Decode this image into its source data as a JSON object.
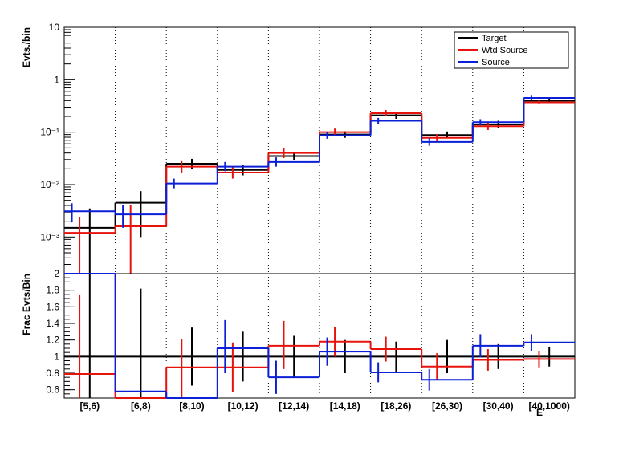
{
  "chart_data": [
    {
      "type": "step",
      "panel": "top",
      "ylabel": "Evts./bin",
      "yscale": "log",
      "ylim": [
        0.0002,
        10
      ],
      "categories": [
        "[5,6)",
        "[6,8)",
        "[8,10)",
        "[10,12)",
        "[12,14)",
        "[14,18)",
        "[18,26)",
        "[26,30)",
        "[30,40)",
        "[40,1000)"
      ],
      "y_tick_labels": [
        "10",
        "1",
        "10⁻¹",
        "10⁻²",
        "10⁻³"
      ],
      "legend": {
        "position": "top-right",
        "entries": [
          "Target",
          "Wtd Source",
          "Source"
        ]
      },
      "series": [
        {
          "name": "Target",
          "color": "#000000",
          "values": [
            0.0015,
            0.0045,
            0.025,
            0.019,
            0.035,
            0.09,
            0.21,
            0.088,
            0.14,
            0.4
          ],
          "err_lo": [
            0.0015,
            0.0035,
            0.005,
            0.004,
            0.006,
            0.012,
            0.03,
            0.012,
            0.02,
            0.03
          ],
          "err_hi": [
            0.002,
            0.003,
            0.006,
            0.005,
            0.007,
            0.014,
            0.035,
            0.015,
            0.025,
            0.035
          ],
          "err_x_frac": 0.5
        },
        {
          "name": "Wtd Source",
          "color": "#e8120c",
          "values": [
            0.0012,
            0.0016,
            0.022,
            0.017,
            0.04,
            0.1,
            0.23,
            0.078,
            0.13,
            0.37
          ],
          "err_lo": [
            0.0012,
            0.0016,
            0.005,
            0.004,
            0.008,
            0.015,
            0.03,
            0.012,
            0.02,
            0.03
          ],
          "err_hi": [
            0.0012,
            0.0025,
            0.006,
            0.005,
            0.009,
            0.017,
            0.035,
            0.014,
            0.022,
            0.035
          ],
          "err_x_frac": 0.3
        },
        {
          "name": "Source",
          "color": "#0a1fd6",
          "values": [
            0.0031,
            0.0027,
            0.0105,
            0.022,
            0.027,
            0.087,
            0.165,
            0.065,
            0.155,
            0.45
          ],
          "err_lo": [
            0.0012,
            0.0012,
            0.002,
            0.004,
            0.005,
            0.012,
            0.02,
            0.01,
            0.02,
            0.04
          ],
          "err_hi": [
            0.0013,
            0.0013,
            0.0025,
            0.005,
            0.006,
            0.014,
            0.022,
            0.012,
            0.022,
            0.045
          ],
          "err_x_frac": 0.15
        }
      ]
    },
    {
      "type": "step",
      "panel": "bottom",
      "ylabel": "Frac Evts/Bin",
      "xlabel": "E",
      "ylim": [
        0.5,
        2.0
      ],
      "y_ticks": [
        0.6,
        0.8,
        1.0,
        1.2,
        1.4,
        1.6,
        1.8,
        2.0
      ],
      "y_tick_labels": [
        "0.6",
        "0.8",
        "1",
        "1.2",
        "1.4",
        "1.6",
        "1.8",
        "2"
      ],
      "categories": [
        "[5,6)",
        "[6,8)",
        "[8,10)",
        "[10,12)",
        "[12,14)",
        "[14,18)",
        "[18,26)",
        "[26,30)",
        "[30,40)",
        "[40,1000)"
      ],
      "series": [
        {
          "name": "Target",
          "color": "#000000",
          "values": [
            1,
            1,
            1,
            1,
            1,
            1,
            1,
            1,
            1,
            1
          ],
          "err_lo": [
            1.0,
            1.0,
            0.35,
            0.3,
            0.25,
            0.2,
            0.18,
            0.2,
            0.15,
            0.12
          ],
          "err_hi": [
            1.0,
            0.82,
            0.35,
            0.3,
            0.25,
            0.2,
            0.18,
            0.2,
            0.15,
            0.12
          ],
          "err_x_frac": 0.5
        },
        {
          "name": "Wtd Source",
          "color": "#e8120c",
          "values": [
            0.79,
            0.5,
            0.87,
            0.87,
            1.13,
            1.18,
            1.09,
            0.88,
            0.96,
            0.97
          ],
          "err_lo": [
            0.79,
            0.0,
            0.4,
            0.3,
            0.28,
            0.18,
            0.15,
            0.16,
            0.13,
            0.1
          ],
          "err_hi": [
            0.95,
            0.0,
            0.34,
            0.3,
            0.3,
            0.18,
            0.15,
            0.16,
            0.13,
            0.1
          ],
          "err_x_frac": 0.3
        },
        {
          "name": "Source",
          "color": "#0a1fd6",
          "values": [
            2.0,
            0.58,
            0.5,
            1.1,
            0.75,
            1.06,
            0.81,
            0.72,
            1.13,
            1.17
          ],
          "err_lo": [
            0.0,
            0.0,
            0.0,
            0.3,
            0.2,
            0.17,
            0.12,
            0.13,
            0.14,
            0.1
          ],
          "err_hi": [
            0.0,
            0.0,
            0.0,
            0.34,
            0.2,
            0.17,
            0.12,
            0.13,
            0.14,
            0.1
          ],
          "err_x_frac": 0.15
        }
      ]
    }
  ]
}
